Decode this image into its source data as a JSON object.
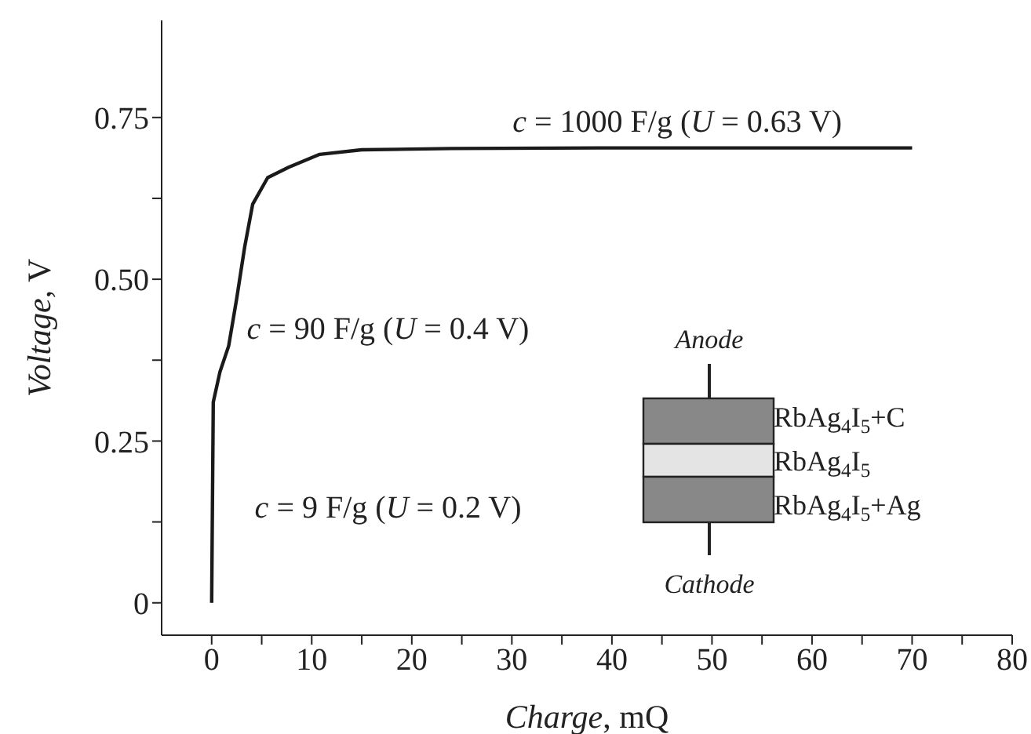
{
  "chart_data": {
    "type": "line",
    "xlabel": "Charge, mQ",
    "ylabel": "Voltage, V",
    "x": [
      0,
      0.16,
      0.83,
      1.7,
      2.5,
      3.3,
      4.1,
      5.6,
      7.7,
      10.8,
      15,
      24,
      40,
      55,
      70
    ],
    "series": [
      {
        "color": "#1a1a1a",
        "values": [
          0,
          0.31,
          0.357,
          0.397,
          0.47,
          0.55,
          0.616,
          0.657,
          0.673,
          0.693,
          0.7,
          0.702,
          0.703,
          0.703,
          0.703
        ]
      }
    ],
    "xlim": [
      -5,
      80
    ],
    "ylim": [
      -0.05,
      0.9
    ],
    "xticks": [
      0,
      {
        "value": 5,
        "label": null
      },
      10,
      {
        "value": 15,
        "label": null
      },
      20,
      {
        "value": 25,
        "label": null
      },
      30,
      {
        "value": 35,
        "label": null
      },
      40,
      {
        "value": 45,
        "label": null
      },
      50,
      {
        "value": 55,
        "label": null
      },
      60,
      {
        "value": 65,
        "label": null
      },
      70,
      {
        "value": 75,
        "label": null
      },
      80
    ],
    "yticks": [
      0,
      {
        "value": 0.125,
        "label": null
      },
      0.25,
      {
        "value": 0.375,
        "label": null
      },
      {
        "value": 0.5,
        "label": "0.50"
      },
      {
        "value": 0.625,
        "label": null
      },
      0.75
    ],
    "marker": "none",
    "line_style": "solid",
    "grid": false,
    "legend": false,
    "annotations": [
      "c = 1000 F/g (U = 0.63 V)",
      "c = 90 F/g (U = 0.4 V)",
      "c = 9 F/g (U = 0.2 V)",
      "Anode",
      "RbAg$_{4}$I$_{5}$+C",
      "RbAg$_{4}$I$_{5}$",
      "RbAg$_{4}$I$_{5}$+Ag",
      "Cathode"
    ]
  }
}
